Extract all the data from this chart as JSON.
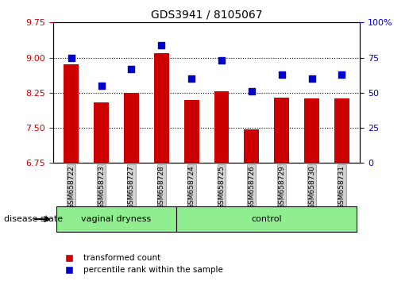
{
  "title": "GDS3941 / 8105067",
  "samples": [
    "GSM658722",
    "GSM658723",
    "GSM658727",
    "GSM658728",
    "GSM658724",
    "GSM658725",
    "GSM658726",
    "GSM658729",
    "GSM658730",
    "GSM658731"
  ],
  "bar_values": [
    8.85,
    8.05,
    8.25,
    9.1,
    8.1,
    8.28,
    7.47,
    8.15,
    8.12,
    8.13
  ],
  "dot_values": [
    75,
    55,
    67,
    84,
    60,
    73,
    51,
    63,
    60,
    63
  ],
  "groups": [
    {
      "label": "vaginal dryness",
      "start": 0,
      "end": 4
    },
    {
      "label": "control",
      "start": 4,
      "end": 10
    }
  ],
  "group_colors": [
    "#90ee90",
    "#90ee90"
  ],
  "bar_color": "#cc0000",
  "dot_color": "#0000cc",
  "ylim_left": [
    6.75,
    9.75
  ],
  "ylim_right": [
    0,
    100
  ],
  "yticks_left": [
    6.75,
    7.5,
    8.25,
    9.0,
    9.75
  ],
  "yticks_right": [
    0,
    25,
    50,
    75,
    100
  ],
  "grid_values": [
    7.5,
    8.25,
    9.0
  ],
  "xlabel": "",
  "ylabel_left": "",
  "ylabel_right": "",
  "legend_bar_label": "transformed count",
  "legend_dot_label": "percentile rank within the sample",
  "disease_state_label": "disease state",
  "background_color": "#ffffff",
  "plot_bg_color": "#ffffff",
  "tick_label_color_left": "#cc0000",
  "tick_label_color_right": "#0000cc"
}
